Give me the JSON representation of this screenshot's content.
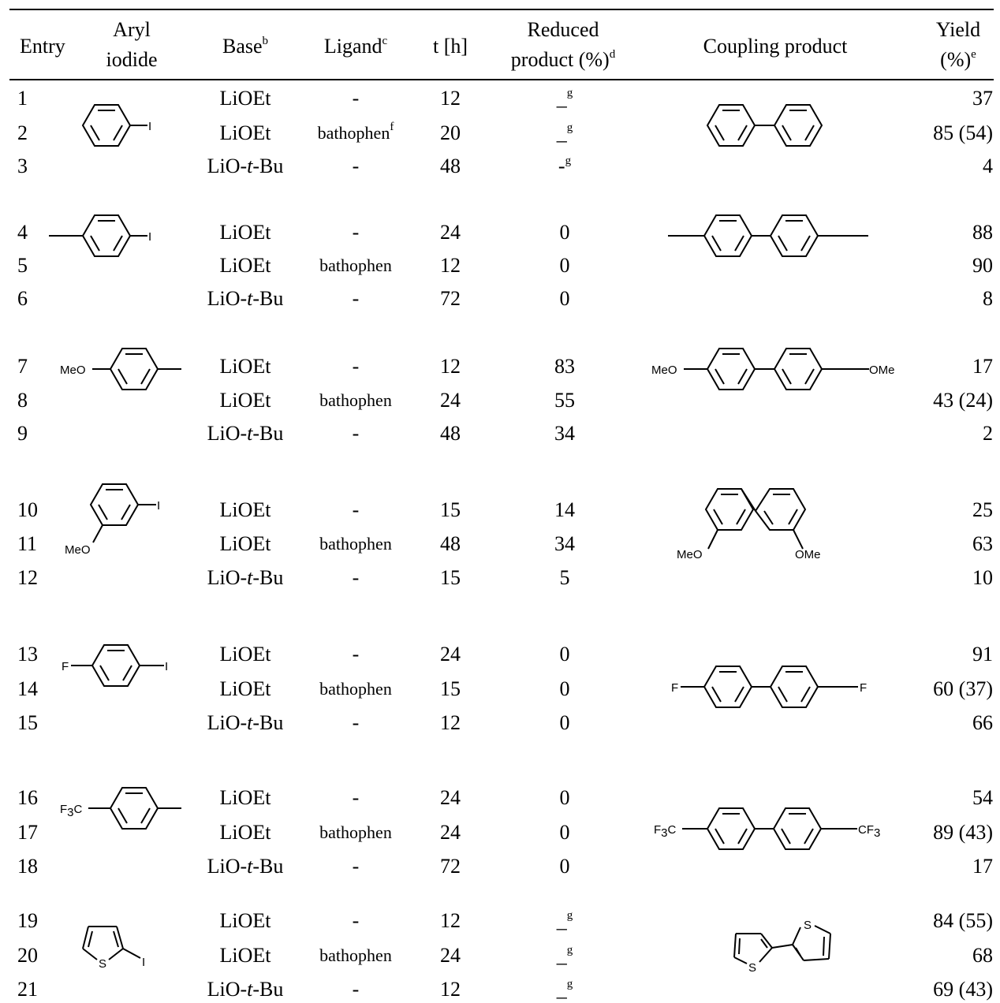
{
  "headers": {
    "entry": "Entry",
    "aryl_line1": "Aryl",
    "aryl_line2": "iodide",
    "base": "Base",
    "base_sup": "b",
    "ligand": "Ligand",
    "ligand_sup": "c",
    "time": "t [h]",
    "reduced_line1": "Reduced",
    "reduced_line2": "product (%)",
    "reduced_sup": "d",
    "coupling": "Coupling product",
    "yield_line1": "Yield",
    "yield_line2": "(%)",
    "yield_sup": "e"
  },
  "rows": [
    {
      "entry": "1",
      "base_main": "LiOEt",
      "base_italic": "",
      "base_tail": "",
      "ligand": "-",
      "ligand_sup": "",
      "time": "12",
      "reduced": "_",
      "reduced_sup": "g",
      "yield": "37"
    },
    {
      "entry": "2",
      "base_main": "LiOEt",
      "base_italic": "",
      "base_tail": "",
      "ligand": "bathophen",
      "ligand_sup": "f",
      "time": "20",
      "reduced": "_",
      "reduced_sup": "g",
      "yield": "85 (54)"
    },
    {
      "entry": "3",
      "base_main": "LiO-",
      "base_italic": "t",
      "base_tail": "-Bu",
      "ligand": "-",
      "ligand_sup": "",
      "time": "48",
      "reduced": "-",
      "reduced_sup": "g",
      "yield": "4"
    },
    {
      "entry": "4",
      "base_main": "LiOEt",
      "base_italic": "",
      "base_tail": "",
      "ligand": "-",
      "ligand_sup": "",
      "time": "24",
      "reduced": "0",
      "reduced_sup": "",
      "yield": "88"
    },
    {
      "entry": "5",
      "base_main": "LiOEt",
      "base_italic": "",
      "base_tail": "",
      "ligand": "bathophen",
      "ligand_sup": "",
      "time": "12",
      "reduced": "0",
      "reduced_sup": "",
      "yield": "90"
    },
    {
      "entry": "6",
      "base_main": "LiO-",
      "base_italic": "t",
      "base_tail": "-Bu",
      "ligand": "-",
      "ligand_sup": "",
      "time": "72",
      "reduced": "0",
      "reduced_sup": "",
      "yield": "8"
    },
    {
      "entry": "7",
      "base_main": "LiOEt",
      "base_italic": "",
      "base_tail": "",
      "ligand": "-",
      "ligand_sup": "",
      "time": "12",
      "reduced": "83",
      "reduced_sup": "",
      "yield": "17"
    },
    {
      "entry": "8",
      "base_main": "LiOEt",
      "base_italic": "",
      "base_tail": "",
      "ligand": "bathophen",
      "ligand_sup": "",
      "time": "24",
      "reduced": "55",
      "reduced_sup": "",
      "yield": "43 (24)"
    },
    {
      "entry": "9",
      "base_main": "LiO-",
      "base_italic": "t",
      "base_tail": "-Bu",
      "ligand": "-",
      "ligand_sup": "",
      "time": "48",
      "reduced": "34",
      "reduced_sup": "",
      "yield": "2"
    },
    {
      "entry": "10",
      "base_main": "LiOEt",
      "base_italic": "",
      "base_tail": "",
      "ligand": "-",
      "ligand_sup": "",
      "time": "15",
      "reduced": "14",
      "reduced_sup": "",
      "yield": "25"
    },
    {
      "entry": "11",
      "base_main": "LiOEt",
      "base_italic": "",
      "base_tail": "",
      "ligand": "bathophen",
      "ligand_sup": "",
      "time": "48",
      "reduced": "34",
      "reduced_sup": "",
      "yield": "63"
    },
    {
      "entry": "12",
      "base_main": "LiO-",
      "base_italic": "t",
      "base_tail": "-Bu",
      "ligand": "-",
      "ligand_sup": "",
      "time": "15",
      "reduced": "5",
      "reduced_sup": "",
      "yield": "10"
    },
    {
      "entry": "13",
      "base_main": "LiOEt",
      "base_italic": "",
      "base_tail": "",
      "ligand": "-",
      "ligand_sup": "",
      "time": "24",
      "reduced": "0",
      "reduced_sup": "",
      "yield": "91"
    },
    {
      "entry": "14",
      "base_main": "LiOEt",
      "base_italic": "",
      "base_tail": "",
      "ligand": "bathophen",
      "ligand_sup": "",
      "time": "15",
      "reduced": "0",
      "reduced_sup": "",
      "yield": "60 (37)"
    },
    {
      "entry": "15",
      "base_main": "LiO-",
      "base_italic": "t",
      "base_tail": "-Bu",
      "ligand": "-",
      "ligand_sup": "",
      "time": "12",
      "reduced": "0",
      "reduced_sup": "",
      "yield": "66"
    },
    {
      "entry": "16",
      "base_main": "LiOEt",
      "base_italic": "",
      "base_tail": "",
      "ligand": "-",
      "ligand_sup": "",
      "time": "24",
      "reduced": "0",
      "reduced_sup": "",
      "yield": "54"
    },
    {
      "entry": "17",
      "base_main": "LiOEt",
      "base_italic": "",
      "base_tail": "",
      "ligand": "bathophen",
      "ligand_sup": "",
      "time": "24",
      "reduced": "0",
      "reduced_sup": "",
      "yield": "89 (43)"
    },
    {
      "entry": "18",
      "base_main": "LiO-",
      "base_italic": "t",
      "base_tail": "-Bu",
      "ligand": "-",
      "ligand_sup": "",
      "time": "72",
      "reduced": "0",
      "reduced_sup": "",
      "yield": "17"
    },
    {
      "entry": "19",
      "base_main": "LiOEt",
      "base_italic": "",
      "base_tail": "",
      "ligand": "-",
      "ligand_sup": "",
      "time": "12",
      "reduced": "_",
      "reduced_sup": "g",
      "yield": "84 (55)"
    },
    {
      "entry": "20",
      "base_main": "LiOEt",
      "base_italic": "",
      "base_tail": "",
      "ligand": "bathophen",
      "ligand_sup": "",
      "time": "24",
      "reduced": "_",
      "reduced_sup": "g",
      "yield": "68"
    },
    {
      "entry": "21",
      "base_main": "LiO-",
      "base_italic": "t",
      "base_tail": "-Bu",
      "ligand": "-",
      "ligand_sup": "",
      "time": "12",
      "reduced": "_",
      "reduced_sup": "g",
      "yield": "69 (43)"
    }
  ],
  "structure_labels": {
    "iodo": "I",
    "methoxy_left": "MeO",
    "methoxy_right": "OMe",
    "fluoro": "F",
    "cf3_left_main": "F",
    "cf3_left_sub": "3",
    "cf3_left_tail": "C",
    "cf3_right_main": "CF",
    "cf3_right_sub": "3",
    "sulfur": "S"
  },
  "structure_icons": [
    "iodobenzene-structure",
    "biphenyl-structure",
    "4-iodotoluene-structure",
    "4-4-dimethylbiphenyl-structure",
    "4-methoxyaryl-structure",
    "4-4-dimethoxybiphenyl-structure",
    "3-iodoanisole-structure",
    "3-3-dimethoxybiphenyl-structure",
    "4-fluoroiodobenzene-structure",
    "4-4-difluorobiphenyl-structure",
    "4-trifluoromethylaryl-structure",
    "4-4-bis-trifluoromethylbiphenyl-structure",
    "2-iodothiophene-structure",
    "2-2-bithiophene-structure"
  ]
}
